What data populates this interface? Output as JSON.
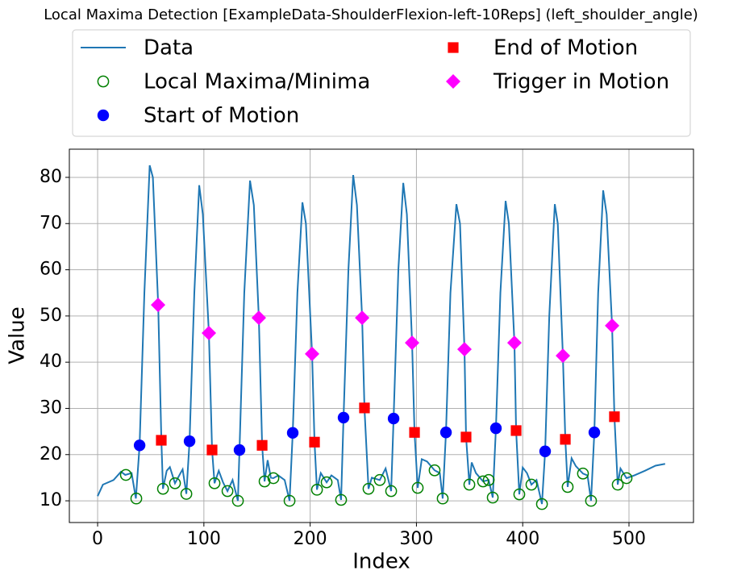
{
  "chart_data": {
    "type": "line",
    "title": "Local Maxima Detection [ExampleData-ShoulderFlexion-left-10Reps] (left_shoulder_angle)",
    "x_label": "Index",
    "y_label": "Value",
    "xlim": [
      -26.6,
      560.7
    ],
    "ylim": [
      5.3,
      86.1
    ],
    "xticks": [
      0,
      100,
      200,
      300,
      400,
      500
    ],
    "yticks": [
      10,
      20,
      30,
      40,
      50,
      60,
      70,
      80
    ],
    "grid": true,
    "legend_position": "top",
    "series": [
      {
        "name": "Data",
        "color": "#1f77b4",
        "marker": "line",
        "x": [
          0,
          5,
          15,
          22,
          26,
          32,
          36,
          39.5,
          44,
          49,
          52,
          57,
          60,
          61.5,
          65,
          68,
          72.8,
          78,
          80,
          83.5,
          86.5,
          91,
          95.6,
          99,
          104.7,
          107.7,
          110,
          114,
          118,
          122.2,
          127,
          132,
          133.5,
          138,
          143.4,
          147,
          151.7,
          154.8,
          157.1,
          160,
          163,
          165.4,
          170,
          176,
          180.6,
          183.6,
          188,
          192.7,
          196,
          201.8,
          204.1,
          206.4,
          210,
          215.5,
          220,
          226,
          229.1,
          231.4,
          236,
          240.5,
          244,
          248.9,
          251.1,
          254.9,
          258,
          265.5,
          271,
          276.2,
          278.5,
          283,
          287.6,
          291,
          295.9,
          298.2,
          301.2,
          305,
          310,
          317.1,
          322,
          324.7,
          327.8,
          332,
          337.6,
          341,
          345.2,
          346.7,
          349.8,
          352,
          356,
          362.7,
          368,
          371.8,
          374.8,
          379,
          383.9,
          387,
          392.2,
          393.8,
          396.8,
          400,
          404,
          408.2,
          413,
          418.1,
          421.1,
          425,
          430.2,
          433,
          437.8,
          440.1,
          442.3,
          446,
          450,
          456.7,
          461,
          464.3,
          467.4,
          471,
          475.7,
          479,
          484.1,
          486.3,
          489.4,
          492,
          497.7,
          505,
          515,
          525,
          534
        ],
        "values": [
          11,
          13.5,
          14.5,
          16.3,
          15.6,
          16,
          10.5,
          22,
          55,
          82.6,
          80,
          52.4,
          23,
          12.6,
          16.5,
          17.3,
          13.8,
          16,
          16.8,
          11.5,
          22.9,
          55,
          78.3,
          72,
          46.3,
          21,
          13.8,
          16.5,
          14,
          12.1,
          14.5,
          10,
          21,
          55,
          79.3,
          74,
          49.6,
          22,
          14.2,
          18.8,
          15,
          14.9,
          15.5,
          14.5,
          10,
          24.7,
          55,
          74.6,
          70,
          41.8,
          22.7,
          12.4,
          16,
          14,
          15.5,
          14.5,
          10.2,
          28,
          60,
          80.5,
          74,
          49.6,
          30,
          12.6,
          15,
          14.5,
          17,
          12.1,
          27.8,
          60,
          78.8,
          72,
          44.2,
          24.8,
          12.8,
          19,
          18.5,
          16.6,
          16,
          10.5,
          24.8,
          55,
          74.2,
          70,
          42.8,
          23.8,
          13.5,
          18.3,
          16,
          14.2,
          14.5,
          10.7,
          25.7,
          55,
          74.9,
          70,
          44.2,
          25.2,
          11.4,
          17.2,
          16,
          13.5,
          14.5,
          9.3,
          20.7,
          50,
          74.2,
          70,
          41.4,
          23.3,
          13,
          19.2,
          17.5,
          15.9,
          15.5,
          10,
          24.8,
          55,
          77.2,
          72,
          47.9,
          28.2,
          13.5,
          17,
          14.9,
          15.5,
          16.5,
          17.6,
          18
        ]
      },
      {
        "name": "Local Maxima/Minima",
        "color": "#008000",
        "marker": "open-circle",
        "x": [
          26.6,
          36.4,
          61.5,
          72.8,
          83.5,
          110.0,
          122.2,
          132.0,
          157.1,
          165.4,
          180.6,
          206.4,
          215.5,
          229.1,
          254.9,
          265.5,
          276.2,
          301.2,
          317.1,
          324.7,
          349.8,
          362.7,
          368.0,
          371.8,
          396.8,
          408.2,
          418.1,
          442.3,
          456.7,
          464.3,
          489.4,
          497.7
        ],
        "values": [
          15.6,
          10.5,
          12.6,
          13.8,
          11.5,
          13.8,
          12.1,
          10.0,
          14.2,
          14.9,
          10.0,
          12.4,
          14.0,
          10.2,
          12.6,
          14.5,
          12.1,
          12.8,
          16.6,
          10.5,
          13.5,
          14.2,
          14.5,
          10.7,
          11.4,
          13.5,
          9.3,
          13.0,
          15.9,
          10.0,
          13.5,
          14.9
        ]
      },
      {
        "name": "Start of Motion",
        "color": "#0000ff",
        "marker": "circle",
        "x": [
          39.5,
          86.5,
          133.5,
          183.6,
          231.4,
          278.5,
          327.8,
          374.8,
          421.1,
          467.4
        ],
        "values": [
          22.0,
          22.9,
          21.0,
          24.7,
          28.0,
          27.8,
          24.8,
          25.7,
          20.7,
          24.8
        ]
      },
      {
        "name": "End of Motion",
        "color": "#ff0000",
        "marker": "square",
        "x": [
          59.9,
          107.7,
          154.8,
          204.1,
          251.1,
          298.2,
          346.7,
          393.8,
          440.1,
          486.3
        ],
        "values": [
          23.1,
          21.0,
          22.0,
          22.7,
          30.1,
          24.8,
          23.8,
          25.2,
          23.3,
          28.2
        ]
      },
      {
        "name": "Trigger in Motion",
        "color": "#ff00ff",
        "marker": "diamond",
        "x": [
          56.9,
          104.7,
          151.7,
          201.8,
          248.9,
          295.9,
          345.2,
          392.2,
          437.8,
          484.1
        ],
        "values": [
          52.4,
          46.3,
          49.6,
          41.8,
          49.6,
          44.2,
          42.8,
          44.2,
          41.4,
          47.9
        ]
      }
    ]
  }
}
